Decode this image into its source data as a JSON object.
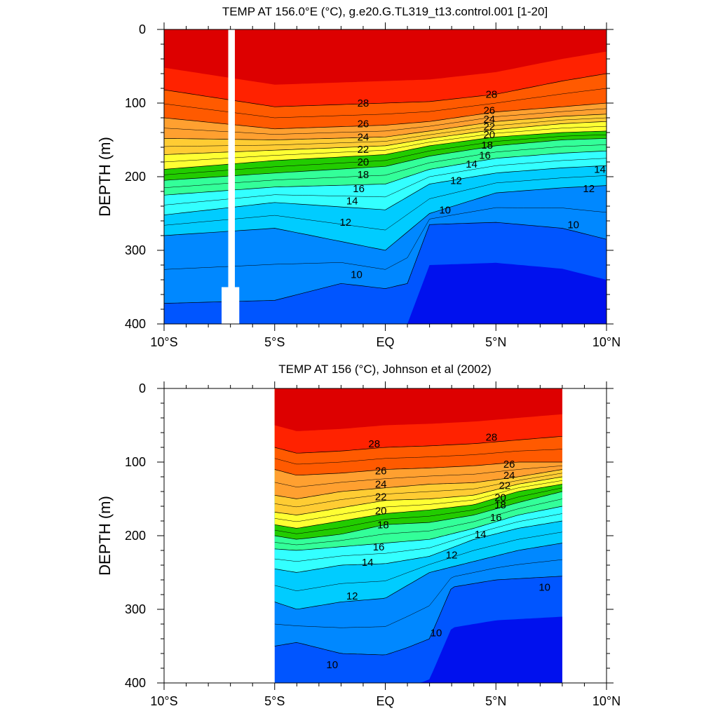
{
  "chart_data": [
    {
      "type": "contour",
      "title": "TEMP AT 156.0°E (°C), g.e20.G.TL319_t13.control.001 [1-20]",
      "ylabel": "DEPTH (m)",
      "xlabel": "",
      "x_ticks": [
        "10°S",
        "5°S",
        "EQ",
        "5°N",
        "10°N"
      ],
      "x_tick_values": [
        -10,
        -5,
        0,
        5,
        10
      ],
      "y_ticks": [
        "0",
        "100",
        "200",
        "300",
        "400"
      ],
      "y_tick_values": [
        0,
        100,
        200,
        300,
        400
      ],
      "xlim": [
        -10,
        10
      ],
      "ylim": [
        400,
        0
      ],
      "data_xlim": [
        -10,
        10
      ],
      "levels": [
        10,
        12,
        14,
        16,
        18,
        20,
        22,
        24,
        26,
        28
      ],
      "isotherms": [
        {
          "temp": 28,
          "x": [
            -10,
            -5,
            0,
            2,
            5,
            8,
            10
          ],
          "depth": [
            82,
            105,
            100,
            98,
            88,
            70,
            60
          ]
        },
        {
          "temp": 26,
          "x": [
            -10,
            -5,
            0,
            2,
            5,
            8,
            10
          ],
          "depth": [
            120,
            135,
            130,
            125,
            112,
            105,
            100
          ]
        },
        {
          "temp": 24,
          "x": [
            -10,
            -5,
            0,
            2,
            5,
            8,
            10
          ],
          "depth": [
            148,
            150,
            146,
            138,
            125,
            118,
            115
          ]
        },
        {
          "temp": 22,
          "x": [
            -10,
            -5,
            0,
            2,
            5,
            8,
            10
          ],
          "depth": [
            170,
            164,
            158,
            148,
            136,
            128,
            125
          ]
        },
        {
          "temp": 20,
          "x": [
            -10,
            -5,
            0,
            2,
            5,
            8,
            10
          ],
          "depth": [
            190,
            178,
            170,
            158,
            146,
            140,
            138
          ]
        },
        {
          "temp": 18,
          "x": [
            -10,
            -5,
            0,
            2,
            5,
            8,
            10
          ],
          "depth": [
            205,
            195,
            186,
            172,
            158,
            150,
            148
          ]
        },
        {
          "temp": 16,
          "x": [
            -10,
            -5,
            0,
            2,
            5,
            8,
            10
          ],
          "depth": [
            225,
            214,
            210,
            190,
            175,
            168,
            165
          ]
        },
        {
          "temp": 14,
          "x": [
            -10,
            -5,
            0,
            2,
            5,
            8,
            10
          ],
          "depth": [
            252,
            235,
            245,
            210,
            195,
            188,
            185
          ]
        },
        {
          "temp": 12,
          "x": [
            -10,
            -5,
            0,
            2,
            5,
            8,
            10
          ],
          "depth": [
            280,
            270,
            300,
            250,
            222,
            215,
            212
          ]
        },
        {
          "temp": 10,
          "x": [
            -10,
            -5,
            -2,
            0,
            1,
            2,
            5,
            8,
            10
          ],
          "depth": [
            372,
            368,
            345,
            352,
            345,
            265,
            262,
            270,
            285
          ]
        }
      ],
      "isotherm_labels": [
        {
          "text": "28",
          "x": -1,
          "depth": 100
        },
        {
          "text": "26",
          "x": -1,
          "depth": 128
        },
        {
          "text": "24",
          "x": -1,
          "depth": 146
        },
        {
          "text": "22",
          "x": -1,
          "depth": 163
        },
        {
          "text": "20",
          "x": -1,
          "depth": 180
        },
        {
          "text": "18",
          "x": -1,
          "depth": 197
        },
        {
          "text": "16",
          "x": -1.2,
          "depth": 216
        },
        {
          "text": "14",
          "x": -1.5,
          "depth": 233
        },
        {
          "text": "12",
          "x": -1.8,
          "depth": 262
        },
        {
          "text": "10",
          "x": -1.3,
          "depth": 333
        },
        {
          "text": "28",
          "x": 4.8,
          "depth": 88
        },
        {
          "text": "26",
          "x": 4.7,
          "depth": 110
        },
        {
          "text": "24",
          "x": 4.7,
          "depth": 122
        },
        {
          "text": "22",
          "x": 4.7,
          "depth": 132
        },
        {
          "text": "20",
          "x": 4.7,
          "depth": 143
        },
        {
          "text": "18",
          "x": 4.6,
          "depth": 157
        },
        {
          "text": "16",
          "x": 4.5,
          "depth": 171
        },
        {
          "text": "14",
          "x": 3.9,
          "depth": 183
        },
        {
          "text": "12",
          "x": 3.2,
          "depth": 205
        },
        {
          "text": "10",
          "x": 2.7,
          "depth": 245
        },
        {
          "text": "14",
          "x": 9.7,
          "depth": 190
        },
        {
          "text": "12",
          "x": 9.2,
          "depth": 216
        },
        {
          "text": "10",
          "x": 8.5,
          "depth": 265
        }
      ],
      "missing_data": [
        {
          "x_from": -7.1,
          "x_to": -6.8,
          "depth_from": 0,
          "depth_to": 350
        },
        {
          "x_from": -7.4,
          "x_to": -6.6,
          "depth_from": 350,
          "depth_to": 400
        }
      ]
    },
    {
      "type": "contour",
      "title": "TEMP AT 156 (°C), Johnson et al (2002)",
      "ylabel": "DEPTH (m)",
      "xlabel": "",
      "x_ticks": [
        "10°S",
        "5°S",
        "EQ",
        "5°N",
        "10°N"
      ],
      "x_tick_values": [
        -10,
        -5,
        0,
        5,
        10
      ],
      "y_ticks": [
        "0",
        "100",
        "200",
        "300",
        "400"
      ],
      "y_tick_values": [
        0,
        100,
        200,
        300,
        400
      ],
      "xlim": [
        -10,
        10
      ],
      "ylim": [
        400,
        0
      ],
      "data_xlim": [
        -5,
        8
      ],
      "levels": [
        10,
        12,
        14,
        16,
        18,
        20,
        22,
        24,
        26,
        28
      ],
      "isotherms": [
        {
          "temp": 28,
          "x": [
            -5,
            -4,
            -2,
            0,
            2,
            4,
            6,
            8
          ],
          "depth": [
            80,
            88,
            85,
            80,
            78,
            75,
            70,
            65
          ]
        },
        {
          "temp": 26,
          "x": [
            -5,
            -4,
            -2,
            0,
            2,
            4,
            6,
            8
          ],
          "depth": [
            110,
            118,
            115,
            110,
            108,
            105,
            100,
            100
          ]
        },
        {
          "temp": 24,
          "x": [
            -5,
            -4,
            -2,
            0,
            2,
            4,
            6,
            8
          ],
          "depth": [
            145,
            150,
            140,
            135,
            130,
            128,
            120,
            110
          ]
        },
        {
          "temp": 22,
          "x": [
            -5,
            -4,
            -2,
            0,
            2,
            4,
            6,
            8
          ],
          "depth": [
            168,
            172,
            162,
            152,
            150,
            145,
            130,
            120
          ]
        },
        {
          "temp": 20,
          "x": [
            -5,
            -4,
            -2,
            0,
            2,
            4,
            6,
            8
          ],
          "depth": [
            185,
            190,
            180,
            170,
            165,
            158,
            140,
            130
          ]
        },
        {
          "temp": 18,
          "x": [
            -5,
            -4,
            -2,
            0,
            2,
            4,
            6,
            8
          ],
          "depth": [
            200,
            205,
            198,
            185,
            182,
            172,
            155,
            140
          ]
        },
        {
          "temp": 16,
          "x": [
            -5,
            -4,
            -2,
            0,
            2,
            4,
            6,
            8
          ],
          "depth": [
            218,
            220,
            215,
            210,
            205,
            190,
            172,
            160
          ]
        },
        {
          "temp": 14,
          "x": [
            -5,
            -4,
            -2,
            0,
            2,
            4,
            6,
            8
          ],
          "depth": [
            245,
            250,
            240,
            238,
            228,
            205,
            190,
            180
          ]
        },
        {
          "temp": 12,
          "x": [
            -5,
            -4,
            -2,
            0,
            2,
            4,
            6,
            8
          ],
          "depth": [
            290,
            300,
            290,
            285,
            250,
            235,
            220,
            210
          ]
        },
        {
          "temp": 10,
          "x": [
            -5,
            -4,
            -2,
            0,
            1,
            2,
            3,
            5,
            8
          ],
          "depth": [
            350,
            345,
            360,
            362,
            352,
            340,
            270,
            260,
            255
          ]
        }
      ],
      "isotherm_labels": [
        {
          "text": "28",
          "x": -0.5,
          "depth": 75
        },
        {
          "text": "26",
          "x": -0.2,
          "depth": 112
        },
        {
          "text": "24",
          "x": -0.2,
          "depth": 130
        },
        {
          "text": "22",
          "x": -0.2,
          "depth": 147
        },
        {
          "text": "20",
          "x": -0.2,
          "depth": 166
        },
        {
          "text": "18",
          "x": -0.1,
          "depth": 185
        },
        {
          "text": "16",
          "x": -0.3,
          "depth": 215
        },
        {
          "text": "14",
          "x": -0.8,
          "depth": 236
        },
        {
          "text": "12",
          "x": -1.5,
          "depth": 282
        },
        {
          "text": "10",
          "x": 2.3,
          "depth": 332
        },
        {
          "text": "10",
          "x": -2.4,
          "depth": 375
        },
        {
          "text": "28",
          "x": 4.8,
          "depth": 66
        },
        {
          "text": "26",
          "x": 5.6,
          "depth": 103
        },
        {
          "text": "24",
          "x": 5.6,
          "depth": 118
        },
        {
          "text": "22",
          "x": 5.4,
          "depth": 132
        },
        {
          "text": "20",
          "x": 5.2,
          "depth": 148
        },
        {
          "text": "18",
          "x": 5.2,
          "depth": 158
        },
        {
          "text": "16",
          "x": 5.0,
          "depth": 175
        },
        {
          "text": "14",
          "x": 4.3,
          "depth": 198
        },
        {
          "text": "12",
          "x": 3.0,
          "depth": 226
        },
        {
          "text": "10",
          "x": 7.2,
          "depth": 270
        }
      ],
      "missing_data": []
    }
  ]
}
